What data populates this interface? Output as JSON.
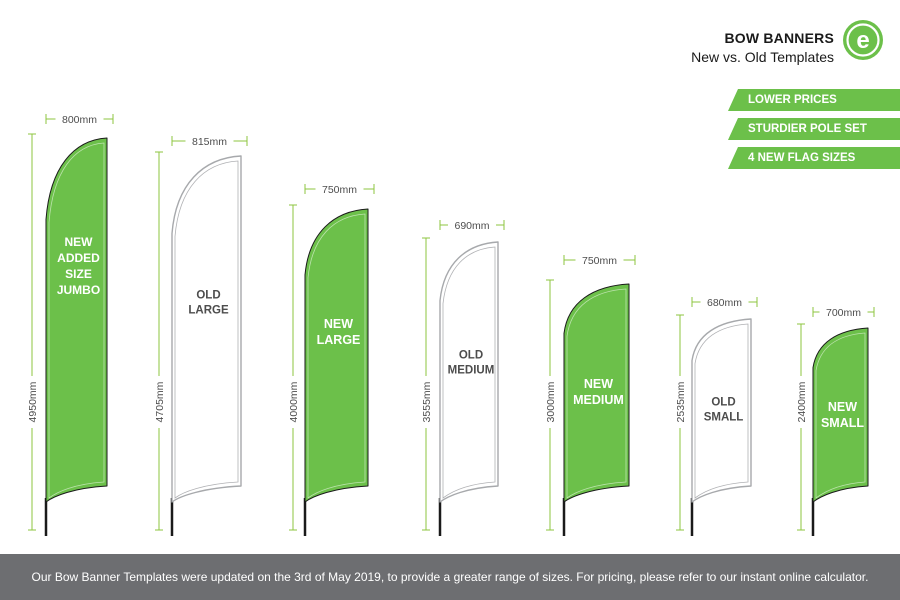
{
  "header": {
    "title": "BOW BANNERS",
    "subtitle": "New vs. Old Templates",
    "logo_icon": "e-logo-icon",
    "logo_letter": "e"
  },
  "features": [
    {
      "label": "LOWER PRICES"
    },
    {
      "label": "STURDIER POLE SET"
    },
    {
      "label": "4 NEW FLAG SIZES"
    }
  ],
  "colors": {
    "accent_green": "#6cc04a",
    "dimension_green": "#8dc63f",
    "outline_gray": "#a7a9ac",
    "footer_gray": "#6d6e71",
    "pole_black": "#1a1a1a"
  },
  "flags": [
    {
      "label": "NEW\nADDED\nSIZE\nJUMBO",
      "width_label": "800mm",
      "height_label": "4950mm",
      "variant": "new",
      "height_mm": 4950,
      "width_mm": 800
    },
    {
      "label": "OLD\nLARGE",
      "width_label": "815mm",
      "height_label": "4705mm",
      "variant": "old",
      "height_mm": 4705,
      "width_mm": 815
    },
    {
      "label": "NEW\nLARGE",
      "width_label": "750mm",
      "height_label": "4000mm",
      "variant": "new",
      "height_mm": 4000,
      "width_mm": 750
    },
    {
      "label": "OLD\nMEDIUM",
      "width_label": "690mm",
      "height_label": "3555mm",
      "variant": "old",
      "height_mm": 3555,
      "width_mm": 690
    },
    {
      "label": "NEW\nMEDIUM",
      "width_label": "750mm",
      "height_label": "3000mm",
      "variant": "new",
      "height_mm": 3000,
      "width_mm": 750
    },
    {
      "label": "OLD\nSMALL",
      "width_label": "680mm",
      "height_label": "2535mm",
      "variant": "old",
      "height_mm": 2535,
      "width_mm": 680
    },
    {
      "label": "NEW\nSMALL",
      "width_label": "700mm",
      "height_label": "2400mm",
      "variant": "new",
      "height_mm": 2400,
      "width_mm": 700
    }
  ],
  "footer": {
    "text": "Our Bow Banner Templates were updated on the 3rd of May 2019, to provide a greater range of sizes. For pricing, please refer to our instant online calculator."
  }
}
